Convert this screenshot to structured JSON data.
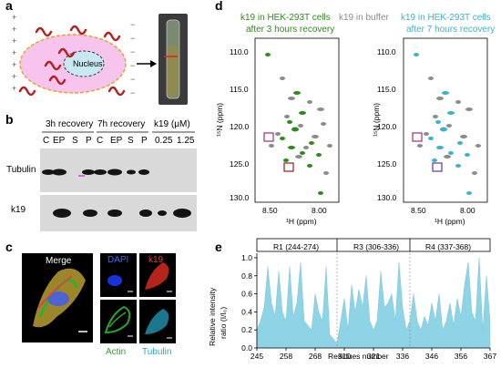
{
  "panels": {
    "a": "a",
    "b": "b",
    "c": "c",
    "d": "d",
    "e": "e"
  },
  "panel_a": {
    "nucleus_label": "Nucleus"
  },
  "panel_b": {
    "groups": [
      {
        "label": "3h recovery",
        "lanes": [
          "C",
          "EP",
          "S",
          "P"
        ]
      },
      {
        "label": "7h recovery",
        "lanes": [
          "C",
          "EP",
          "S",
          "P"
        ]
      },
      {
        "label": "k19 (μM)",
        "lanes": [
          "0.25",
          "1.25"
        ]
      }
    ],
    "row_labels": [
      "Tubulin",
      "k19"
    ]
  },
  "panel_c": {
    "merge_label": "Merge",
    "dapi_label": "DAPI",
    "k19_label": "k19",
    "actin_label": "Actin",
    "tubulin_label": "Tubulin",
    "colors": {
      "dapi": "#1a3cff",
      "k19": "#d42a1e",
      "actin": "#2aa62a",
      "tubulin": "#25a9c9"
    }
  },
  "panel_d": {
    "legend_green": [
      "k19 in HEK-293T cells",
      "after 3 hours recovery"
    ],
    "legend_grey": "k19 in buffer",
    "legend_blue": [
      "k19 in HEK-293T cells",
      "after 7 hours recovery"
    ],
    "y_axis_label": "¹⁵N (ppm)",
    "x_axis_label": "¹H (ppm)",
    "y_ticks": [
      "110.0",
      "115.0",
      "120.0",
      "125.0",
      "130.0"
    ],
    "x_ticks": [
      "8.50",
      "8.00"
    ],
    "colors": {
      "green": "#2e8b1a",
      "grey": "#8c8c8c",
      "blue": "#3bb3cc"
    }
  },
  "panel_e": {
    "regions": [
      "R1 (244-274)",
      "R3 (306-336)",
      "R4 (337-368)"
    ],
    "y_label": [
      "Relative intensity",
      "ratio (I/I₀)"
    ],
    "x_label": "Residues number",
    "y_ticks": [
      "0.0",
      "0.2",
      "0.4",
      "0.6",
      "0.8",
      "1.0"
    ],
    "x_ticks": [
      "245",
      "258",
      "268",
      "310",
      "321",
      "336",
      "346",
      "356",
      "367"
    ],
    "fill_color": "#8fd4e6"
  },
  "chart_data": {
    "type": "area",
    "x_ticks_labels": [
      "245",
      "258",
      "268",
      "310",
      "321",
      "336",
      "346",
      "356",
      "367"
    ],
    "ylim": [
      0,
      1.05
    ],
    "xlabel": "Residues number",
    "ylabel": "Relative intensity ratio (I/I₀)",
    "series": [
      {
        "values": [
          0.2,
          0.3,
          0.45,
          0.9,
          0.5,
          0.35,
          0.85,
          0.4,
          0.3,
          0.9,
          0.35,
          0.5,
          0.95,
          0.3,
          0.25,
          0.2,
          0.6,
          0.4,
          0.3,
          0.9,
          0.15,
          0.1,
          0.05,
          0.3,
          0.55,
          0.2,
          0.7,
          0.4,
          0.65,
          0.45,
          0.8,
          0.3,
          0.2,
          0.3,
          0.85,
          0.45,
          0.5,
          0.6,
          0.3,
          0.95,
          0.45,
          0.2,
          0.3,
          0.6,
          0.3,
          0.2,
          0.35,
          0.25,
          0.5,
          0.3,
          0.6,
          0.2,
          0.3,
          0.5,
          0.25,
          0.55,
          0.35,
          0.7,
          0.95,
          0.4,
          0.3,
          1.0,
          0.2,
          0.8,
          0.3
        ]
      }
    ]
  }
}
